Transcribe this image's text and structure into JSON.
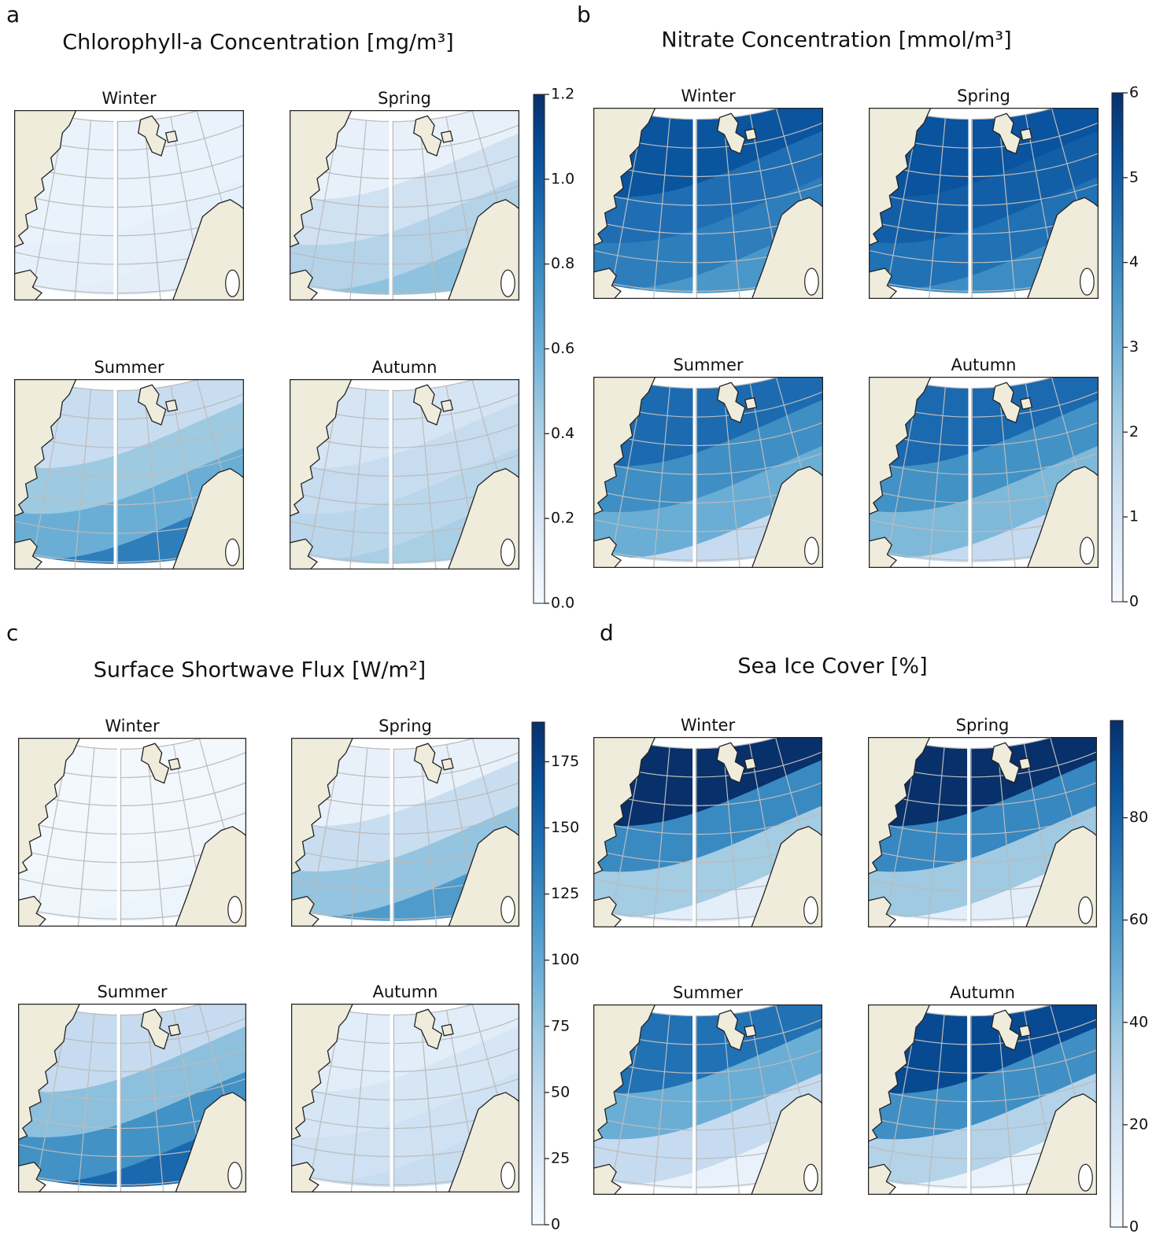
{
  "chart_data": [
    {
      "type": "map",
      "panel": "a",
      "title": "Chlorophyll-a Concentration [mg/m³]",
      "maps": [
        "Winter",
        "Spring",
        "Summer",
        "Autumn"
      ],
      "colormap": "Blues",
      "ylim": [
        0,
        1.2
      ],
      "yticks": [
        {
          "value": 0,
          "label": "0.0"
        },
        0.2,
        0.4,
        0.6,
        0.8,
        {
          "value": 1,
          "label": "1.0"
        },
        1.2
      ]
    },
    {
      "type": "map",
      "panel": "b",
      "title": "Nitrate Concentration [mmol/m³]",
      "maps": [
        "Winter",
        "Spring",
        "Summer",
        "Autumn"
      ],
      "colormap": "Blues",
      "ylim": [
        0,
        6
      ],
      "yticks": [
        0,
        1,
        2,
        3,
        4,
        5,
        6
      ]
    },
    {
      "type": "map",
      "panel": "c",
      "title": "Surface Shortwave Flux [W/m²]",
      "maps": [
        "Winter",
        "Spring",
        "Summer",
        "Autumn"
      ],
      "colormap": "Blues",
      "ylim": [
        0,
        190
      ],
      "yticks": [
        0,
        25,
        50,
        75,
        100,
        125,
        150,
        175
      ]
    },
    {
      "type": "map",
      "panel": "d",
      "title": "Sea Ice Cover [%]",
      "maps": [
        "Winter",
        "Spring",
        "Summer",
        "Autumn"
      ],
      "colormap": "Blues",
      "ylim": [
        0,
        99
      ],
      "yticks": [
        0,
        20,
        40,
        60,
        80
      ]
    }
  ]
}
